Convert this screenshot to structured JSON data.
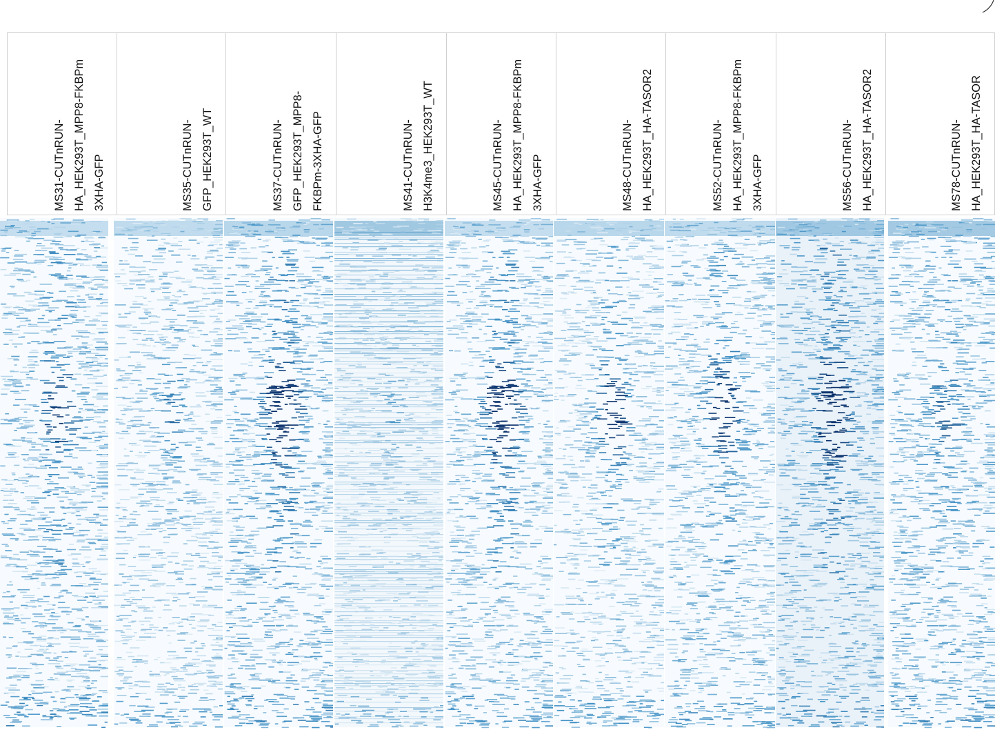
{
  "chart_data": {
    "type": "heatmap",
    "title": "",
    "xlabel": "",
    "ylabel": "",
    "color_scale": {
      "low": "#ffffff",
      "high": "#08306b"
    },
    "grid": false,
    "columns": [
      {
        "id": "MS31",
        "label": "MS31-CUTnRUN-\nHA_HEK293T_MPP8-FKBPm\n3XHA-GFP",
        "center_peak": 0.55,
        "background": 0.32,
        "banding": 0.25,
        "top_band": 0.45
      },
      {
        "id": "MS35",
        "label": "MS35-CUTnRUN-\nGFP_HEK293T_WT",
        "center_peak": 0.25,
        "background": 0.26,
        "banding": 0.3,
        "top_band": 0.5
      },
      {
        "id": "MS37",
        "label": "MS37-CUTnRUN-\nGFP_HEK293T_MPP8-\nFKBPm-3XHA-GFP",
        "center_peak": 0.85,
        "background": 0.34,
        "banding": 0.25,
        "top_band": 0.55
      },
      {
        "id": "MS41",
        "label": "MS41-CUTnRUN-\nH3K4me3_HEK293T_WT",
        "center_peak": 0.15,
        "background": 0.2,
        "banding": 0.85,
        "top_band": 0.75
      },
      {
        "id": "MS45",
        "label": "MS45-CUTnRUN-\nHA_HEK293T_MPP8-FKBPm\n3XHA-GFP",
        "center_peak": 0.9,
        "background": 0.3,
        "banding": 0.25,
        "top_band": 0.45
      },
      {
        "id": "MS48",
        "label": "MS48-CUTnRUN-\nHA_HEK293T_HA-TASOR2",
        "center_peak": 0.7,
        "background": 0.26,
        "banding": 0.2,
        "top_band": 0.55
      },
      {
        "id": "MS52",
        "label": "MS52-CUTnRUN-\nHA_HEK293T_MPP8-FKBPm\n3XHA-GFP",
        "center_peak": 0.65,
        "background": 0.3,
        "banding": 0.25,
        "top_band": 0.5
      },
      {
        "id": "MS56",
        "label": "MS56-CUTnRUN-\nHA_HEK293T_HA-TASOR2",
        "center_peak": 0.95,
        "background": 0.34,
        "banding": 0.25,
        "top_band": 0.7
      },
      {
        "id": "MS78",
        "label": "MS78-CUTnRUN-\nHA_HEK293T_HA-TASOR",
        "center_peak": 0.3,
        "background": 0.34,
        "banding": 0.35,
        "top_band": 0.75
      }
    ]
  }
}
